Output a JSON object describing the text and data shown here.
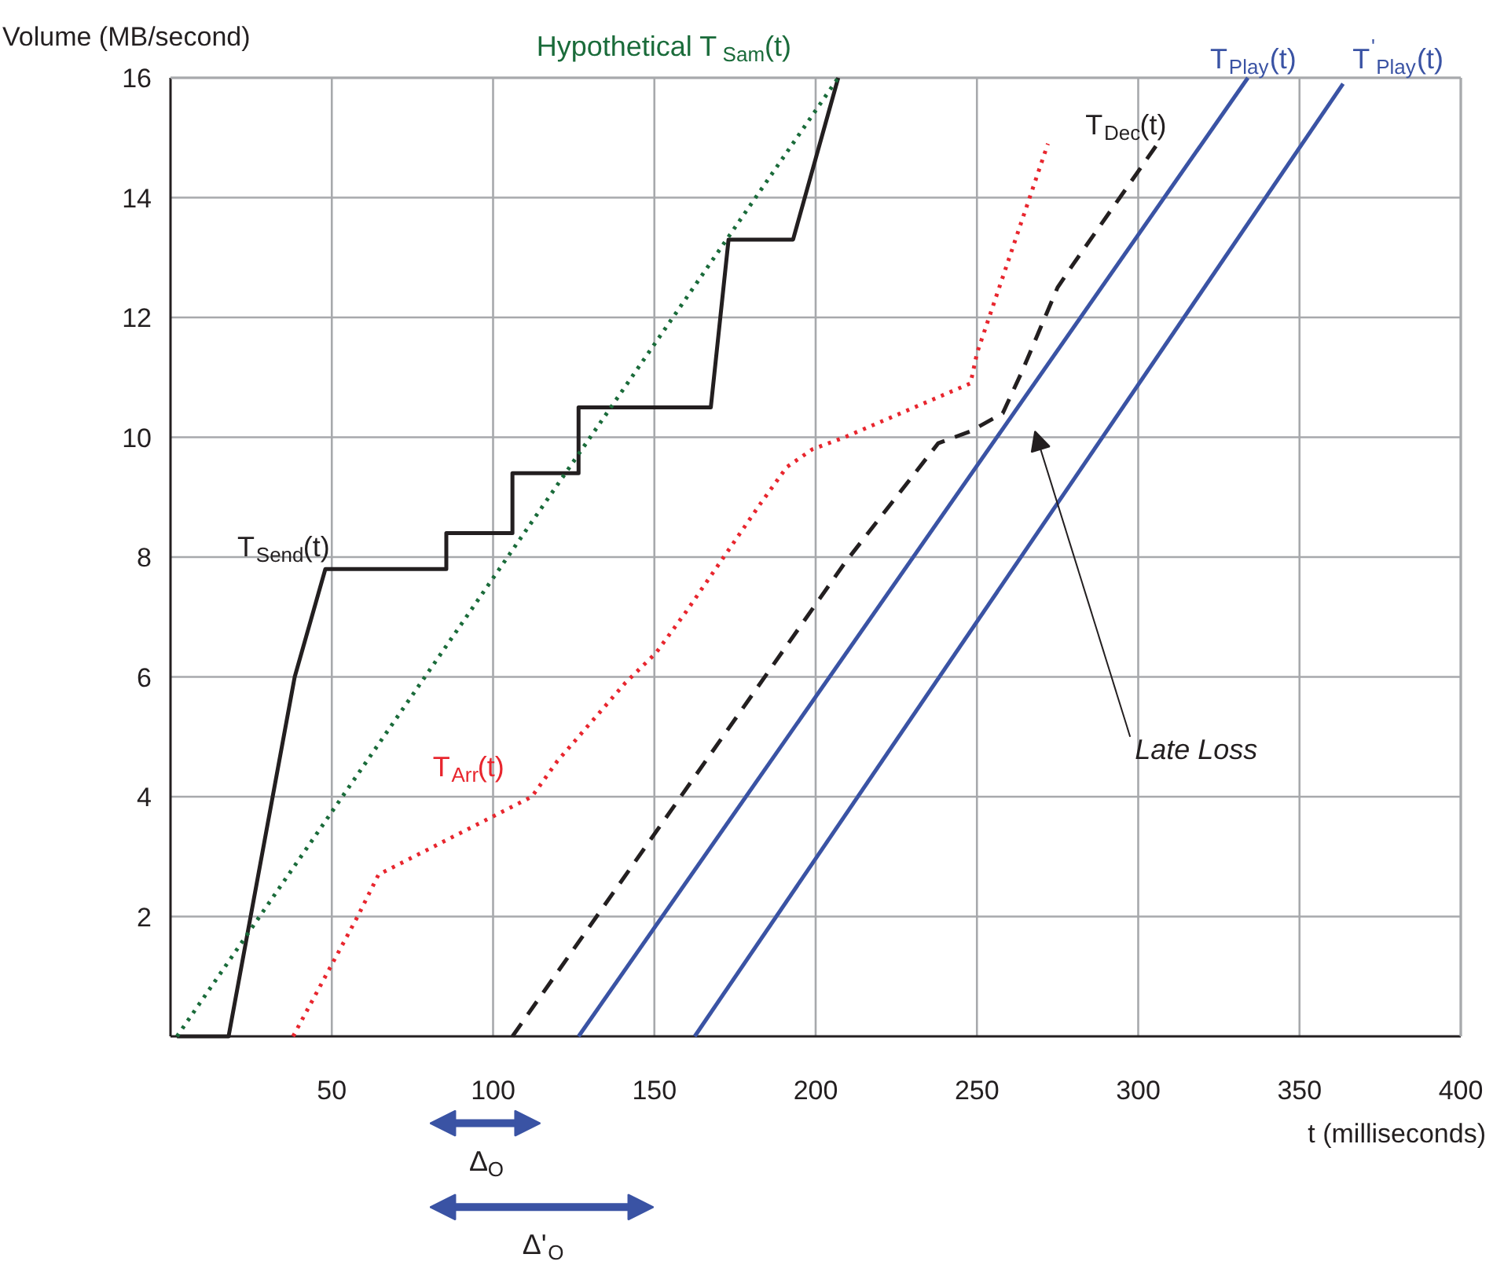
{
  "chart_data": {
    "type": "line",
    "ylabel": "Volume (MB/second)",
    "xlabel": "t (milliseconds)",
    "xlim": [
      0,
      400
    ],
    "xticks": [
      50,
      100,
      150,
      200,
      250,
      300,
      350,
      400
    ],
    "ylim": [
      0,
      16
    ],
    "yticks": [
      2,
      4,
      6,
      8,
      10,
      12,
      14,
      16
    ],
    "grid": true,
    "legend": false,
    "marker": "none",
    "series": [
      {
        "name": "T$_{Send}$(t)",
        "color": "#231f20",
        "line_style": "solid",
        "x": [
          2,
          18,
          38.5,
          48,
          85.5,
          85.5,
          106,
          106,
          126.5,
          126.5,
          167.5,
          173,
          193,
          207
        ],
        "values": [
          0,
          0,
          6,
          7.8,
          7.8,
          8.4,
          8.4,
          9.4,
          9.4,
          10.5,
          10.5,
          13.3,
          13.3,
          16
        ]
      },
      {
        "name": "Hypothetical T$_{Sam}$(t)",
        "color": "#1a6b3a",
        "line_style": "dotted",
        "x": [
          2,
          207
        ],
        "values": [
          0,
          16
        ]
      },
      {
        "name": "T$_{Arr}$(t)",
        "color": "#e8262e",
        "line_style": "dotted",
        "x": [
          38,
          58,
          64.5,
          112,
          120,
          141,
          150.5,
          160,
          171.5,
          183,
          191,
          199,
          209,
          248,
          250,
          272
        ],
        "values": [
          0,
          2,
          2.7,
          4,
          4.6,
          5.9,
          6.4,
          7.1,
          8,
          8.9,
          9.5,
          9.8,
          10,
          10.9,
          11.4,
          14.9
        ]
      },
      {
        "name": "T$_{Dec}$(t)",
        "color": "#231f20",
        "line_style": "dashed",
        "x": [
          106,
          209,
          238,
          248,
          258,
          264,
          275,
          280,
          306
        ],
        "values": [
          0,
          7.9,
          9.9,
          10.1,
          10.4,
          11.1,
          12.5,
          12.9,
          14.9
        ]
      },
      {
        "name": "T$_{Play}$(t)",
        "color": "#3a53a4",
        "line_style": "solid",
        "x": [
          126.5,
          334
        ],
        "values": [
          0,
          16
        ]
      },
      {
        "name": "T$^{'}$$_{Play}$(t)",
        "color": "#3a53a4",
        "line_style": "solid",
        "x": [
          162.5,
          363.5
        ],
        "values": [
          0,
          15.9
        ]
      }
    ],
    "annotations": [
      "Late Loss",
      "Δ$_{O}$",
      "Δ'$_{O}$"
    ]
  }
}
